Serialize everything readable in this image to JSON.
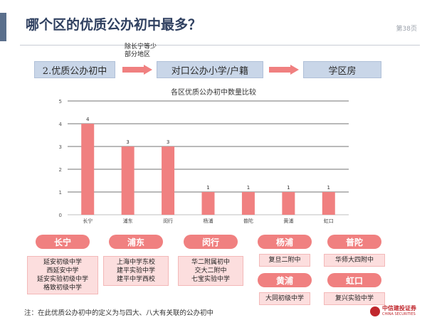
{
  "page": {
    "title": "哪个区的优质公办初中最多？",
    "page_number": "第38页",
    "footnote": "注：在此优质公办初中的定义为与四大、八大有关联的公办初中",
    "logo": {
      "name": "中信建投证券",
      "name_en": "CHINA SECURITIES"
    }
  },
  "flow": {
    "steps": [
      "2.优质公办初中",
      "对口公办小学/户籍",
      "学区房"
    ],
    "note_line1": "除长宁等少",
    "note_line2": "部分地区",
    "arrow_color": "#f08080"
  },
  "chart_data": {
    "type": "bar",
    "title": "各区优质公办初中数量比较",
    "categories": [
      "长宁",
      "浦东",
      "闵行",
      "杨浦",
      "普陀",
      "黄浦",
      "虹口"
    ],
    "values": [
      4,
      3,
      3,
      1,
      1,
      1,
      1
    ],
    "data_labels": [
      "4",
      "3",
      "3",
      "1",
      "1",
      "1",
      "1"
    ],
    "yticks": [
      "0",
      "1",
      "2",
      "3",
      "4",
      "5"
    ],
    "ylim": [
      0,
      5
    ],
    "grid": true,
    "bar_color": "#f08080",
    "legend": "none"
  },
  "districts": [
    {
      "name": "长宁",
      "schools": [
        "延安初级中学",
        "西延安中学",
        "延安实验初级中学",
        "格致初级中学"
      ]
    },
    {
      "name": "浦东",
      "schools": [
        "上海中学东校",
        "建平实验中学",
        "建平中学西校"
      ]
    },
    {
      "name": "闵行",
      "schools": [
        "华二附属初中",
        "交大二附中",
        "七宝实验中学"
      ]
    },
    {
      "name": "杨浦",
      "schools": [
        "复旦二附中"
      ]
    },
    {
      "name": "普陀",
      "schools": [
        "华师大四附中"
      ]
    },
    {
      "name": "黄浦",
      "schools": [
        "大同初级中学"
      ]
    },
    {
      "name": "虹口",
      "schools": [
        "复兴实验中学"
      ]
    }
  ],
  "colors": {
    "accent": "#f08080",
    "title": "#2f4060",
    "flow_box": "#c9d6e8"
  }
}
